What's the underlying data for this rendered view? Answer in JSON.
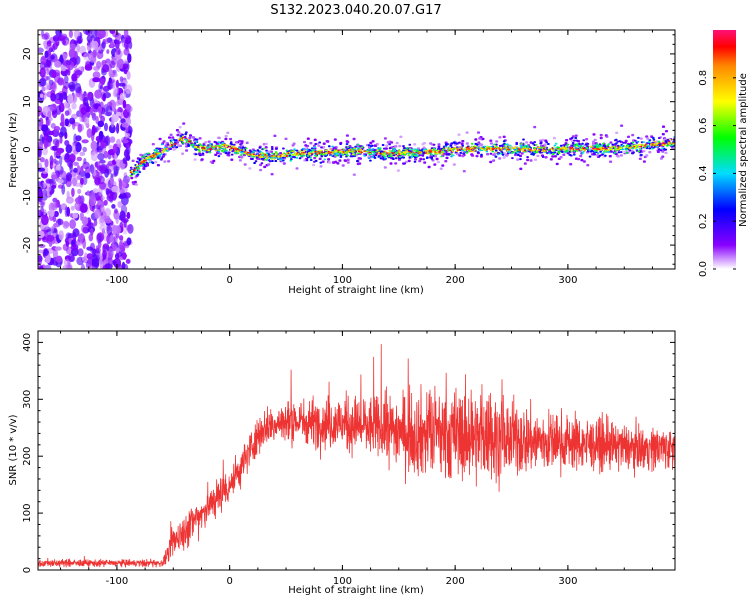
{
  "title": "S132.2023.040.20.07.G17",
  "chart_data": [
    {
      "type": "heatmap",
      "xlabel": "Height of straight line (km)",
      "ylabel": "Frequency (Hz)",
      "xlim": [
        -170,
        395
      ],
      "ylim": [
        -25,
        25
      ],
      "x_ticks": [
        -100,
        0,
        100,
        200,
        300
      ],
      "y_ticks": [
        -20,
        -10,
        0,
        10,
        20
      ],
      "colorbar": {
        "label": "Normalized spectral amplitude",
        "ticks": [
          0.0,
          0.2,
          0.4,
          0.6,
          0.8
        ],
        "tick_labels": [
          "0.0",
          "0.2",
          "0.4",
          "0.6",
          "0.8"
        ],
        "range": [
          0,
          1
        ]
      },
      "noise_region_x": [
        -170,
        -88
      ],
      "ridge": {
        "x": [
          -88,
          -80,
          -70,
          -60,
          -50,
          -40,
          -30,
          -20,
          -10,
          0,
          20,
          40,
          60,
          80,
          100,
          120,
          150,
          180,
          200,
          220,
          250,
          280,
          300,
          330,
          360,
          395
        ],
        "freq": [
          -5,
          -3,
          -1.5,
          -0.5,
          1,
          2.5,
          0.5,
          0,
          0.5,
          0.5,
          -1,
          -1.5,
          -0.8,
          -0.6,
          -0.3,
          -0.5,
          -0.8,
          -0.5,
          0,
          0.3,
          0,
          0,
          0.2,
          0.1,
          0.6,
          1.5
        ]
      }
    },
    {
      "type": "line",
      "xlabel": "Height of straight line (km)",
      "ylabel": "SNR (10 * v/v)",
      "xlim": [
        -170,
        395
      ],
      "ylim": [
        0,
        420
      ],
      "x_ticks": [
        -100,
        0,
        100,
        200,
        300
      ],
      "y_ticks": [
        0,
        100,
        200,
        300,
        400
      ],
      "series_color": "#ee3333",
      "envelope": {
        "x": [
          -170,
          -60,
          -55,
          -50,
          -40,
          -20,
          0,
          10,
          20,
          30,
          50,
          80,
          100,
          130,
          150,
          170,
          200,
          230,
          250,
          280,
          300,
          330,
          360,
          395
        ],
        "mean": [
          12,
          12,
          25,
          50,
          70,
          110,
          150,
          180,
          220,
          250,
          260,
          260,
          258,
          250,
          245,
          240,
          235,
          235,
          230,
          225,
          225,
          218,
          215,
          215
        ],
        "spread": [
          6,
          6,
          15,
          25,
          30,
          30,
          30,
          30,
          30,
          30,
          35,
          40,
          45,
          50,
          60,
          70,
          75,
          70,
          60,
          50,
          45,
          40,
          35,
          35
        ]
      }
    }
  ]
}
